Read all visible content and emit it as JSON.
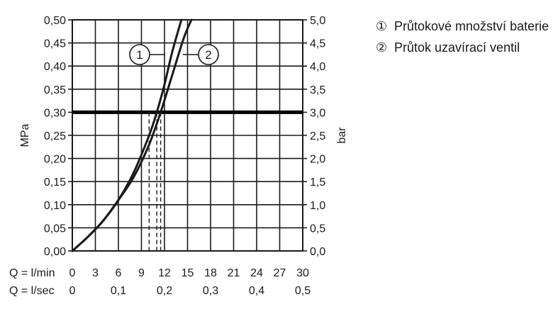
{
  "chart_data": {
    "type": "line",
    "y_left": {
      "label": "MPa",
      "min": 0,
      "max": 0.5,
      "step": 0.05,
      "tick_labels": [
        "0,00",
        "0,05",
        "0,10",
        "0,15",
        "0,20",
        "0,25",
        "0,30",
        "0,35",
        "0,40",
        "0,45",
        "0,50"
      ]
    },
    "y_right": {
      "label": "bar",
      "tick_labels": [
        "0,0",
        "0,5",
        "1,0",
        "1,5",
        "2,0",
        "2,5",
        "3,0",
        "3,5",
        "4,0",
        "4,5",
        "5,0"
      ]
    },
    "x": {
      "min": 0,
      "max": 30,
      "step": 3,
      "row1_prefix": "Q = l/min",
      "row1_ticks": [
        "0",
        "3",
        "6",
        "9",
        "12",
        "15",
        "18",
        "21",
        "24",
        "27",
        "30"
      ],
      "row2_prefix": "Q = l/sec",
      "row2_ticks": [
        {
          "lmin": 0,
          "label": "0"
        },
        {
          "lmin": 6,
          "label": "0,1"
        },
        {
          "lmin": 12,
          "label": "0,2"
        },
        {
          "lmin": 18,
          "label": "0,3"
        },
        {
          "lmin": 24,
          "label": "0,4"
        },
        {
          "lmin": 30,
          "label": "0,5"
        }
      ]
    },
    "reference_line_mpa": 0.3,
    "series": [
      {
        "label": "1",
        "name": "Průtokové množství baterie",
        "points": [
          [
            0,
            0
          ],
          [
            2,
            0.03
          ],
          [
            4,
            0.065
          ],
          [
            6,
            0.11
          ],
          [
            8,
            0.17
          ],
          [
            10,
            0.25
          ],
          [
            11,
            0.3
          ],
          [
            12,
            0.36
          ],
          [
            13,
            0.43
          ],
          [
            14.2,
            0.5
          ]
        ]
      },
      {
        "label": "2",
        "name": "Průtok uzavírací ventil",
        "points": [
          [
            0,
            0
          ],
          [
            2,
            0.03
          ],
          [
            4,
            0.065
          ],
          [
            6,
            0.11
          ],
          [
            8,
            0.16
          ],
          [
            10,
            0.23
          ],
          [
            11.5,
            0.3
          ],
          [
            13,
            0.38
          ],
          [
            14.5,
            0.46
          ],
          [
            15.5,
            0.5
          ]
        ]
      }
    ],
    "dashed_markers_lmin": [
      10,
      11,
      11.5
    ],
    "grid": true
  },
  "legend": [
    {
      "num": "①",
      "text": "Průtokové množství baterie"
    },
    {
      "num": "②",
      "text": "Průtok uzavírací ventil"
    }
  ]
}
